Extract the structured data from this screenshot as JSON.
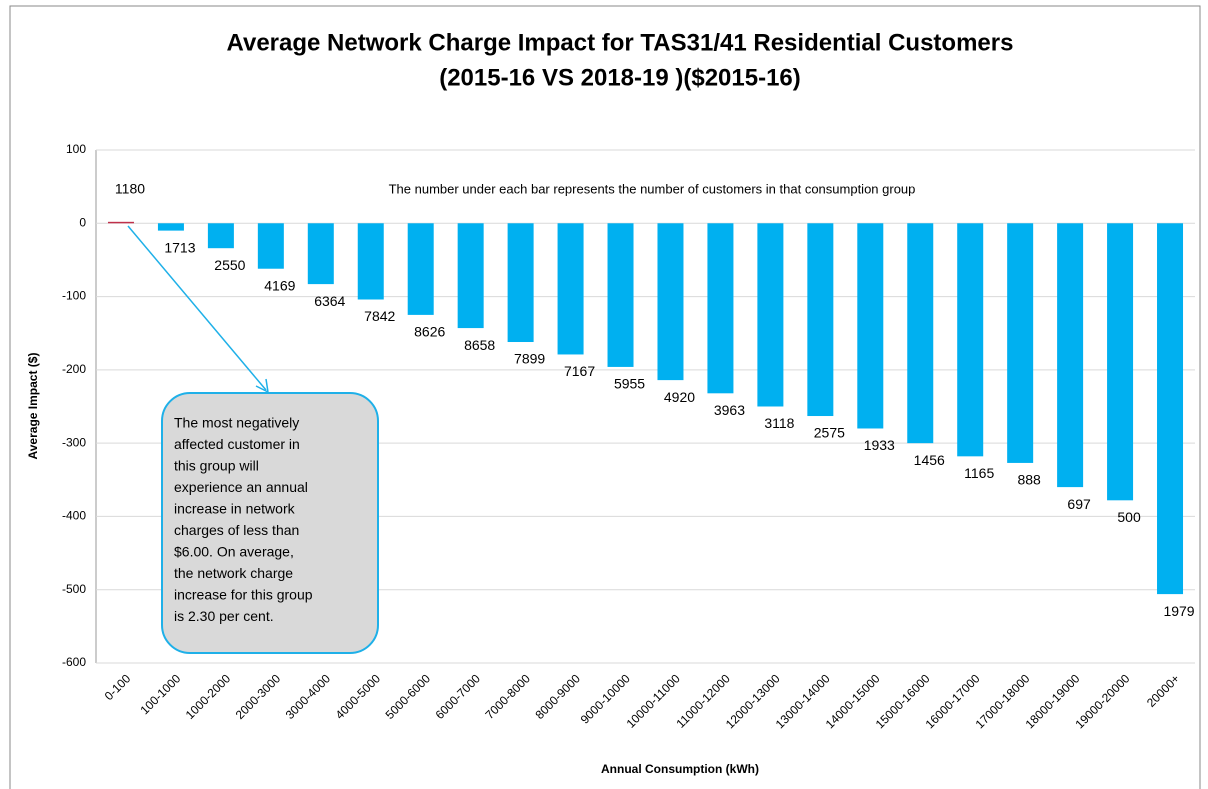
{
  "chart_data": {
    "type": "bar",
    "title": [
      "Average Network Charge Impact for TAS31/41 Residential Customers",
      "(2015-16 VS 2018-19 )($2015-16)"
    ],
    "x_label": "Annual Consumption (kWh)",
    "y_label": "Average Impact ($)",
    "annotation": "The number under each bar represents the number of customers in that consumption group",
    "callout": [
      "The most negatively",
      "affected customer in",
      "this group will",
      "experience an annual",
      "increase in network",
      "charges of less than",
      "$6.00.  On average,",
      "the network charge",
      "increase for this group",
      "is 2.30 per cent."
    ],
    "categories": [
      "0-100",
      "100-1000",
      "1000-2000",
      "2000-3000",
      "3000-4000",
      "4000-5000",
      "5000-6000",
      "6000-7000",
      "7000-8000",
      "8000-9000",
      "9000-10000",
      "10000-11000",
      "11000-12000",
      "12000-13000",
      "13000-14000",
      "14000-15000",
      "15000-16000",
      "16000-17000",
      "17000-18000",
      "18000-19000",
      "19000-20000",
      "20000+"
    ],
    "values": [
      2,
      -10,
      -34,
      -62,
      -83,
      -104,
      -125,
      -143,
      -162,
      -179,
      -196,
      -214,
      -232,
      -250,
      -263,
      -280,
      -300,
      -318,
      -327,
      -360,
      -378,
      -506
    ],
    "bar_labels": [
      "1180",
      "1713",
      "2550",
      "4169",
      "6364",
      "7842",
      "8626",
      "8658",
      "7899",
      "7167",
      "5955",
      "4920",
      "3963",
      "3118",
      "2575",
      "1933",
      "1456",
      "1165",
      "888",
      "697",
      "500",
      "1979"
    ],
    "colors": [
      "#c0304a",
      "#00b0f0",
      "#00b0f0",
      "#00b0f0",
      "#00b0f0",
      "#00b0f0",
      "#00b0f0",
      "#00b0f0",
      "#00b0f0",
      "#00b0f0",
      "#00b0f0",
      "#00b0f0",
      "#00b0f0",
      "#00b0f0",
      "#00b0f0",
      "#00b0f0",
      "#00b0f0",
      "#00b0f0",
      "#00b0f0",
      "#00b0f0",
      "#00b0f0",
      "#00b0f0"
    ],
    "ylim": [
      -600,
      100
    ],
    "yticks": [
      -600,
      -500,
      -400,
      -300,
      -200,
      -100,
      0,
      100
    ],
    "grid": true
  }
}
